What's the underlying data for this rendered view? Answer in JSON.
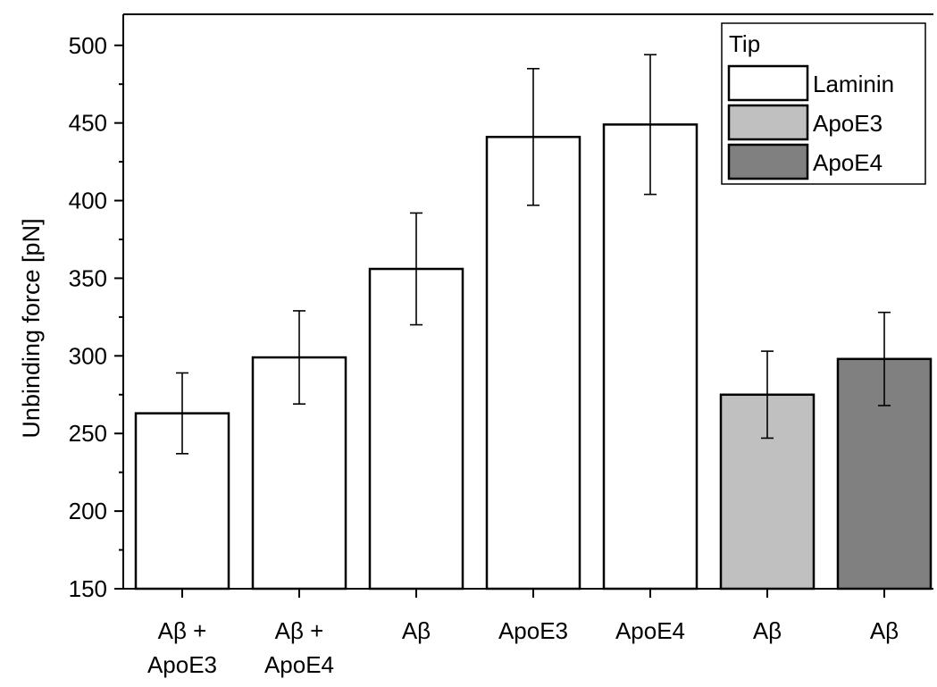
{
  "chart_data": {
    "type": "bar",
    "title": "",
    "xlabel": "",
    "ylabel": "Unbinding force [pN]",
    "ylim": [
      150,
      520
    ],
    "yticks": [
      150,
      200,
      250,
      300,
      350,
      400,
      450,
      500
    ],
    "grid": false,
    "legend": {
      "title": "Tip",
      "position": "top-right",
      "entries": [
        {
          "label": "Laminin",
          "color": "#ffffff"
        },
        {
          "label": "ApoE3",
          "color": "#c0c0c0"
        },
        {
          "label": "ApoE4",
          "color": "#808080"
        }
      ]
    },
    "bars": [
      {
        "label_lines": [
          "Aβ +",
          "ApoE3"
        ],
        "value": 263,
        "error": 26,
        "tip": "Laminin"
      },
      {
        "label_lines": [
          "Aβ +",
          "ApoE4"
        ],
        "value": 299,
        "error": 30,
        "tip": "Laminin"
      },
      {
        "label_lines": [
          "Aβ"
        ],
        "value": 356,
        "error": 36,
        "tip": "Laminin"
      },
      {
        "label_lines": [
          "ApoE3"
        ],
        "value": 441,
        "error": 44,
        "tip": "Laminin"
      },
      {
        "label_lines": [
          "ApoE4"
        ],
        "value": 449,
        "error": 45,
        "tip": "Laminin"
      },
      {
        "label_lines": [
          "Aβ"
        ],
        "value": 275,
        "error": 28,
        "tip": "ApoE3"
      },
      {
        "label_lines": [
          "Aβ"
        ],
        "value": 298,
        "error": 30,
        "tip": "ApoE4"
      }
    ]
  }
}
